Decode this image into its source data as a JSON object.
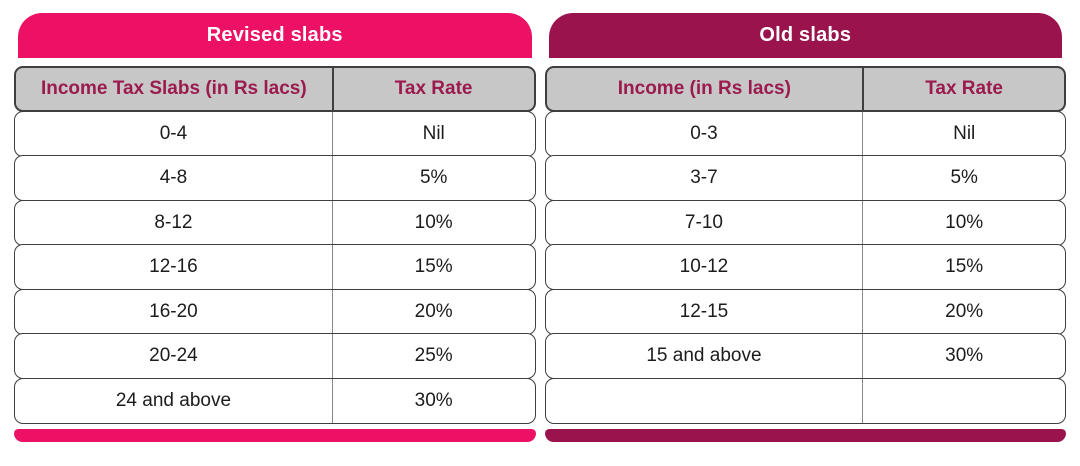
{
  "colors": {
    "revised_accent": "#EC1164",
    "old_accent": "#9A134D",
    "column_header_bg": "#C7C7C7",
    "column_header_text": "#9B1B4E",
    "body_text": "#1C1C1C",
    "row_border": "#3F3F3F"
  },
  "chart_data": [
    {
      "type": "table",
      "title": "Revised slabs",
      "columns": [
        "Income Tax Slabs (in Rs lacs)",
        "Tax Rate"
      ],
      "rows": [
        [
          "0-4",
          "Nil"
        ],
        [
          "4-8",
          "5%"
        ],
        [
          "8-12",
          "10%"
        ],
        [
          "12-16",
          "15%"
        ],
        [
          "16-20",
          "20%"
        ],
        [
          "20-24",
          "25%"
        ],
        [
          "24 and above",
          "30%"
        ]
      ]
    },
    {
      "type": "table",
      "title": "Old slabs",
      "columns": [
        "Income (in Rs lacs)",
        "Tax Rate"
      ],
      "rows": [
        [
          "0-3",
          "Nil"
        ],
        [
          "3-7",
          "5%"
        ],
        [
          "7-10",
          "10%"
        ],
        [
          "10-12",
          "15%"
        ],
        [
          "12-15",
          "20%"
        ],
        [
          "15 and above",
          "30%"
        ],
        [
          "",
          ""
        ]
      ]
    }
  ]
}
